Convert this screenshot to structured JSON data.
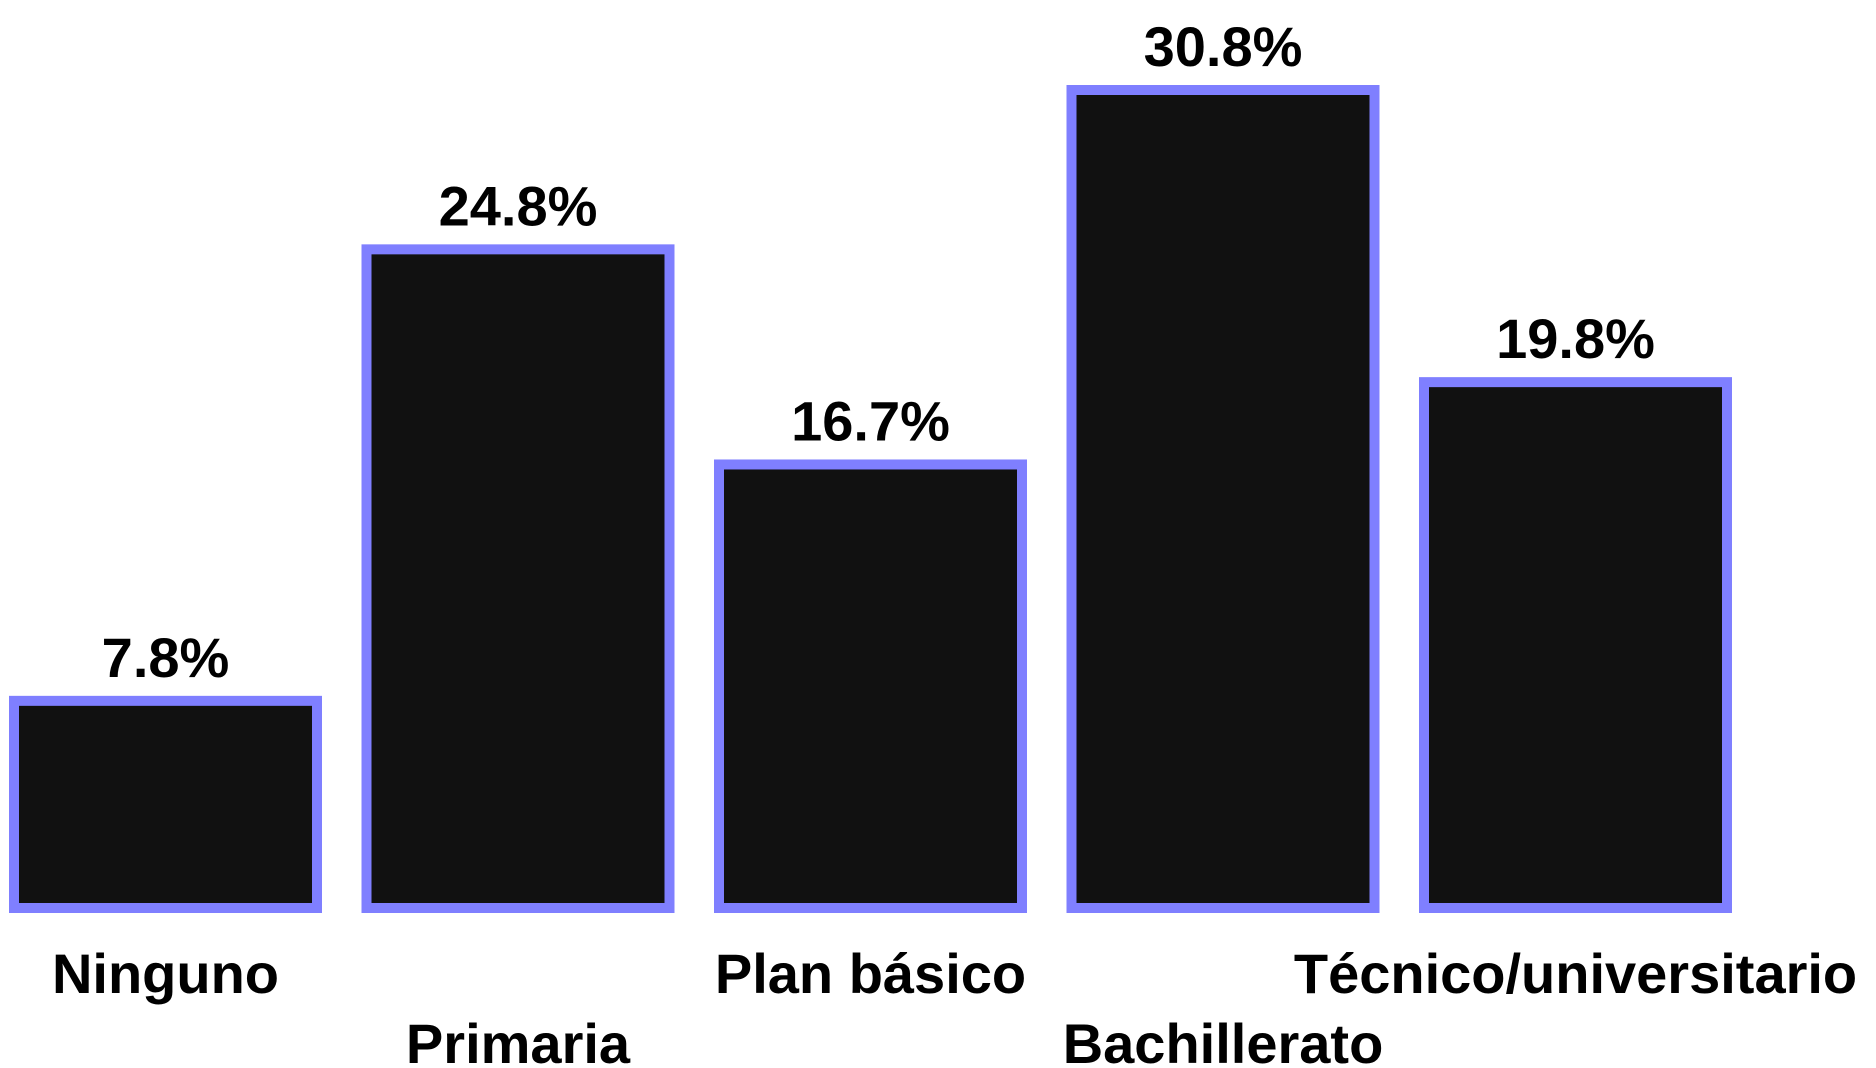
{
  "chart_data": {
    "type": "bar",
    "categories": [
      "Ninguno",
      "Primaria",
      "Plan básico",
      "Bachillerato",
      "Técnico/universitario"
    ],
    "values": [
      7.8,
      24.8,
      16.7,
      30.8,
      19.8
    ],
    "value_labels": [
      "7.8%",
      "24.8%",
      "16.7%",
      "30.8%",
      "19.8%"
    ],
    "title": "",
    "xlabel": "",
    "ylabel": "",
    "ylim": [
      0,
      30.8
    ],
    "grid": false,
    "bar_fill_color": "#111111",
    "bar_edge_color": "#7f7fff"
  }
}
